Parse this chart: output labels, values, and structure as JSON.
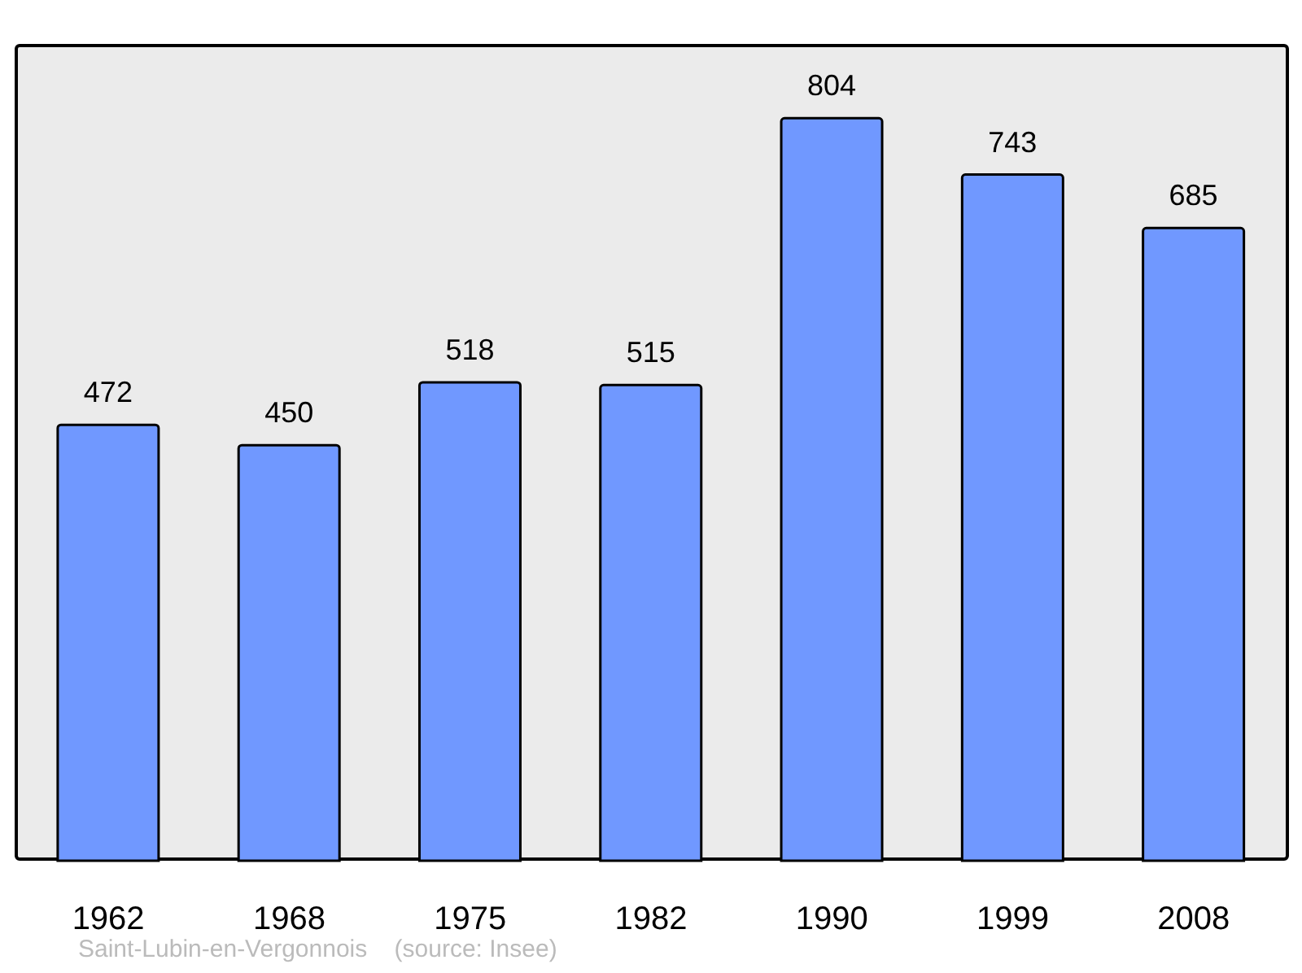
{
  "chart_data": {
    "type": "bar",
    "categories": [
      "1962",
      "1968",
      "1975",
      "1982",
      "1990",
      "1999",
      "2008"
    ],
    "values": [
      472,
      450,
      518,
      515,
      804,
      743,
      685
    ],
    "color": "#7098ff",
    "data_labels": true,
    "annotations": [
      "Saint-Lubin-en-Vergonnois    (source: Insee)"
    ]
  }
}
